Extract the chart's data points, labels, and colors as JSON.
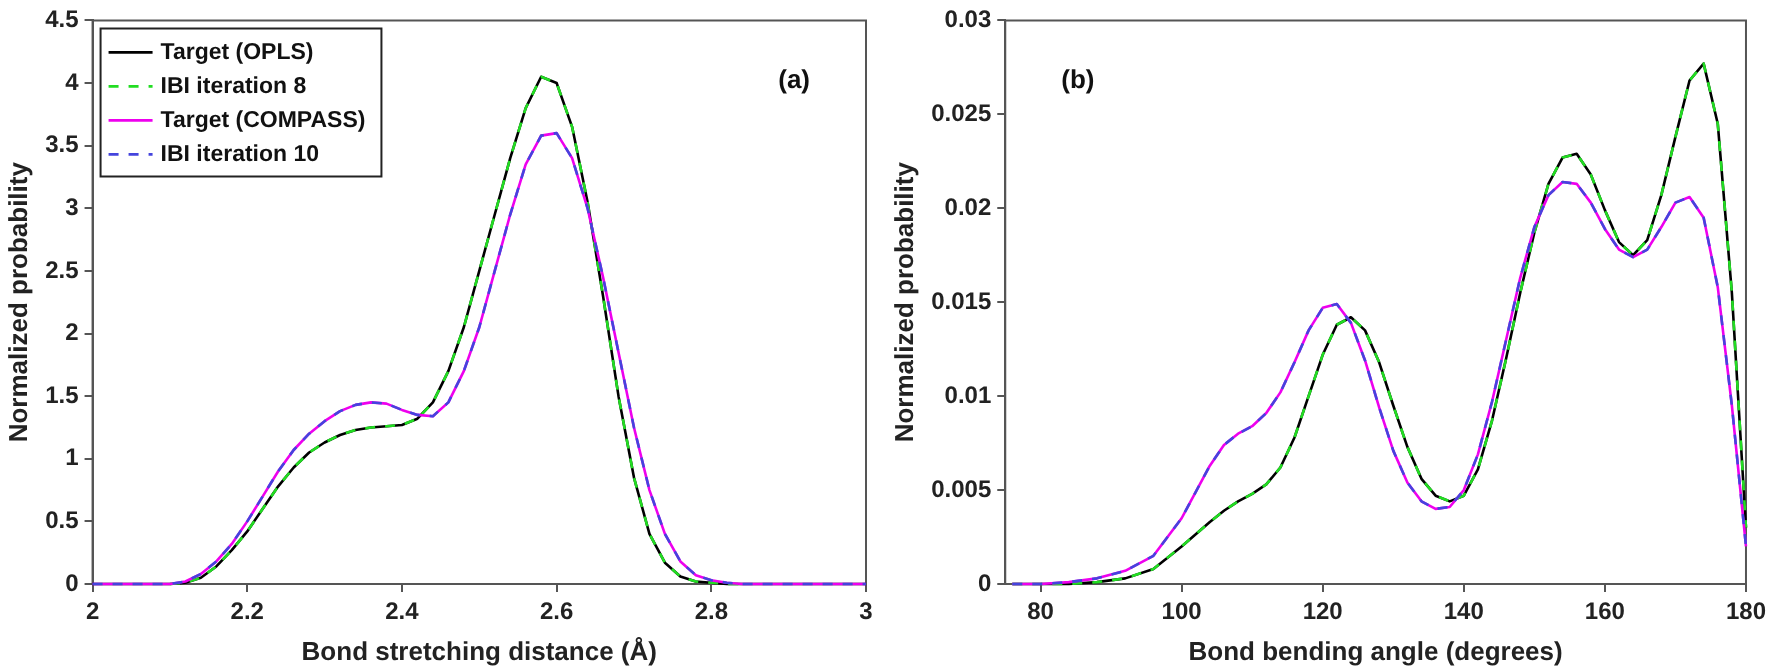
{
  "chart_data": [
    {
      "type": "line",
      "xlabel": "Bond stretching distance (Å)",
      "ylabel": "Normalized probability",
      "annotations": [
        "(a)"
      ],
      "x": [
        2,
        2.02,
        2.04,
        2.06,
        2.08,
        2.1,
        2.12,
        2.14,
        2.16,
        2.18,
        2.2,
        2.22,
        2.24,
        2.26,
        2.28,
        2.3,
        2.32,
        2.34,
        2.36,
        2.38,
        2.4,
        2.42,
        2.44,
        2.46,
        2.48,
        2.5,
        2.52,
        2.54,
        2.56,
        2.58,
        2.6,
        2.62,
        2.64,
        2.66,
        2.68,
        2.7,
        2.72,
        2.74,
        2.76,
        2.78,
        2.8,
        2.82,
        2.84,
        2.86,
        2.88,
        2.9,
        2.92,
        2.94,
        2.96,
        2.98,
        3
      ],
      "series": [
        {
          "name": "Target (OPLS)",
          "color": "#000000",
          "line_style": "solid",
          "values": [
            0,
            0,
            0,
            0,
            0,
            0,
            0.01,
            0.05,
            0.14,
            0.27,
            0.42,
            0.6,
            0.78,
            0.93,
            1.05,
            1.13,
            1.19,
            1.23,
            1.25,
            1.26,
            1.27,
            1.32,
            1.45,
            1.7,
            2.05,
            2.5,
            2.95,
            3.4,
            3.8,
            4.05,
            4.0,
            3.65,
            3.05,
            2.3,
            1.5,
            0.85,
            0.4,
            0.17,
            0.06,
            0.02,
            0.01,
            0,
            0,
            0,
            0,
            0,
            0,
            0,
            0,
            0,
            0
          ]
        },
        {
          "name": "IBI iteration 8",
          "color": "#22dd22",
          "line_style": "dashed",
          "values": [
            null,
            null,
            null,
            null,
            null,
            0,
            0.01,
            0.05,
            0.14,
            0.27,
            0.42,
            0.6,
            0.78,
            0.93,
            1.05,
            1.13,
            1.19,
            1.23,
            1.25,
            1.26,
            1.27,
            1.32,
            1.45,
            1.7,
            2.05,
            2.5,
            2.95,
            3.4,
            3.8,
            4.05,
            4.0,
            3.65,
            3.05,
            2.3,
            1.5,
            0.85,
            0.4,
            0.17,
            0.06,
            0.02,
            0.01,
            0,
            0,
            null,
            null,
            null,
            null,
            null,
            null,
            null,
            null
          ]
        },
        {
          "name": "Target (COMPASS)",
          "color": "#ee00ee",
          "line_style": "solid",
          "values": [
            0,
            0,
            0,
            0,
            0,
            0,
            0.02,
            0.08,
            0.18,
            0.32,
            0.5,
            0.7,
            0.9,
            1.07,
            1.2,
            1.3,
            1.38,
            1.43,
            1.45,
            1.44,
            1.39,
            1.35,
            1.34,
            1.45,
            1.7,
            2.05,
            2.5,
            2.95,
            3.35,
            3.58,
            3.6,
            3.4,
            3.0,
            2.45,
            1.85,
            1.25,
            0.75,
            0.4,
            0.18,
            0.07,
            0.03,
            0.01,
            0,
            0,
            0,
            0,
            0,
            0,
            0,
            0,
            0
          ]
        },
        {
          "name": "IBI iteration 10",
          "color": "#4444dd",
          "line_style": "dashed",
          "values": [
            0,
            0,
            0,
            0,
            0,
            0,
            0.02,
            0.08,
            0.18,
            0.32,
            0.5,
            0.7,
            0.9,
            1.07,
            1.2,
            1.3,
            1.38,
            1.43,
            1.45,
            1.44,
            1.39,
            1.35,
            1.34,
            1.45,
            1.7,
            2.05,
            2.5,
            2.95,
            3.35,
            3.58,
            3.6,
            3.4,
            3.0,
            2.45,
            1.85,
            1.25,
            0.75,
            0.4,
            0.18,
            0.07,
            0.03,
            0.01,
            0,
            0,
            0,
            0,
            0,
            0,
            0,
            0,
            0
          ]
        }
      ],
      "xlim": [
        2,
        3
      ],
      "xticks": [
        2,
        2.2,
        2.4,
        2.6,
        2.8,
        3
      ],
      "ylim": [
        0,
        4.5
      ],
      "yticks": [
        0,
        0.5,
        1,
        1.5,
        2,
        2.5,
        3,
        3.5,
        4,
        4.5
      ],
      "grid": false,
      "legend": "top left"
    },
    {
      "type": "line",
      "xlabel": "Bond bending angle (degrees)",
      "ylabel": "Normalized probability",
      "annotations": [
        "(b)"
      ],
      "x": [
        76,
        80,
        84,
        88,
        92,
        96,
        100,
        104,
        106,
        108,
        110,
        112,
        114,
        116,
        118,
        120,
        122,
        124,
        126,
        128,
        130,
        132,
        134,
        136,
        138,
        140,
        142,
        144,
        146,
        148,
        150,
        152,
        154,
        156,
        158,
        160,
        162,
        164,
        166,
        168,
        170,
        172,
        174,
        176,
        178,
        180
      ],
      "series": [
        {
          "color": "#000000",
          "line_style": "solid",
          "values": [
            0,
            0,
            0,
            0.0001,
            0.0003,
            0.0008,
            0.002,
            0.0033,
            0.0039,
            0.0044,
            0.0048,
            0.0053,
            0.0062,
            0.0078,
            0.01,
            0.0122,
            0.0138,
            0.0142,
            0.0135,
            0.0118,
            0.0095,
            0.0073,
            0.0056,
            0.0047,
            0.0044,
            0.0047,
            0.0061,
            0.0087,
            0.012,
            0.0155,
            0.0187,
            0.0213,
            0.0227,
            0.0229,
            0.0218,
            0.0199,
            0.0182,
            0.0175,
            0.0183,
            0.0207,
            0.0238,
            0.0268,
            0.0277,
            0.0245,
            0.0155,
            0.003
          ]
        },
        {
          "color": "#22dd22",
          "line_style": "dashed",
          "values": [
            0,
            0,
            0,
            0.0001,
            0.0003,
            0.0008,
            0.002,
            0.0033,
            0.0039,
            0.0044,
            0.0048,
            0.0053,
            0.0062,
            0.0078,
            0.01,
            0.0122,
            0.0138,
            0.0142,
            0.0135,
            0.0118,
            0.0095,
            0.0073,
            0.0056,
            0.0047,
            0.0044,
            0.0047,
            0.0061,
            0.0087,
            0.012,
            0.0155,
            0.0187,
            0.0213,
            0.0227,
            0.0229,
            0.0218,
            0.0199,
            0.0182,
            0.0175,
            0.0183,
            0.0207,
            0.0238,
            0.0268,
            0.0277,
            0.0245,
            0.0155,
            0.003
          ]
        },
        {
          "color": "#ee00ee",
          "line_style": "solid",
          "values": [
            0,
            0,
            0.0001,
            0.0003,
            0.0007,
            0.0015,
            0.0035,
            0.0063,
            0.0074,
            0.008,
            0.0084,
            0.0091,
            0.0102,
            0.0118,
            0.0135,
            0.0147,
            0.0149,
            0.0139,
            0.0119,
            0.0094,
            0.0071,
            0.0054,
            0.0044,
            0.004,
            0.0041,
            0.005,
            0.0069,
            0.0097,
            0.013,
            0.0163,
            0.019,
            0.0207,
            0.0214,
            0.0213,
            0.0203,
            0.0189,
            0.0178,
            0.0174,
            0.0178,
            0.019,
            0.0203,
            0.0206,
            0.0195,
            0.0158,
            0.0095,
            0.002
          ]
        },
        {
          "color": "#4444dd",
          "line_style": "dashed",
          "values": [
            0,
            0,
            0.0001,
            0.0003,
            0.0007,
            0.0015,
            0.0035,
            0.0063,
            0.0074,
            0.008,
            0.0084,
            0.0091,
            0.0102,
            0.0118,
            0.0135,
            0.0147,
            0.0149,
            0.0139,
            0.0119,
            0.0094,
            0.0071,
            0.0054,
            0.0044,
            0.004,
            0.0041,
            0.005,
            0.0069,
            0.0097,
            0.013,
            0.0163,
            0.019,
            0.0207,
            0.0214,
            0.0213,
            0.0203,
            0.0189,
            0.0178,
            0.0174,
            0.0178,
            0.019,
            0.0203,
            0.0206,
            0.0195,
            0.0158,
            0.0095,
            0.002
          ]
        }
      ],
      "xlim": [
        75,
        180
      ],
      "xticks": [
        80,
        100,
        120,
        140,
        160,
        180
      ],
      "ylim": [
        0,
        0.03
      ],
      "yticks": [
        0,
        0.005,
        0.01,
        0.015,
        0.02,
        0.025,
        0.03
      ],
      "grid": false,
      "legend": false
    }
  ]
}
